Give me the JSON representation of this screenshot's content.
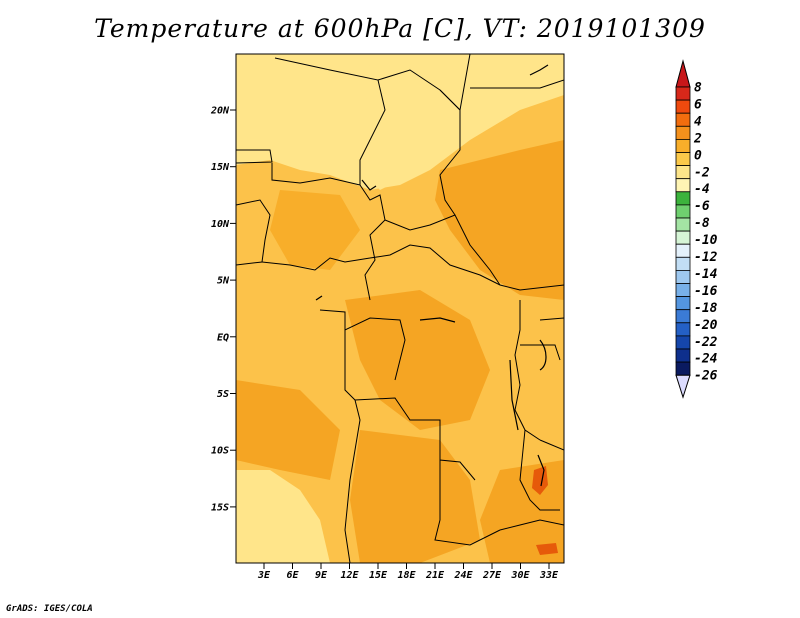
{
  "title": "Temperature at 600hPa [C], VT: 2019101309",
  "footer": "GrADS: IGES/COLA",
  "map": {
    "y_ticks": [
      "20N",
      "15N",
      "10N",
      "5N",
      "EQ",
      "5S",
      "10S",
      "15S"
    ],
    "x_ticks": [
      "3E",
      "6E",
      "9E",
      "12E",
      "15E",
      "18E",
      "21E",
      "24E",
      "27E",
      "30E",
      "33E"
    ],
    "fill_colors": {
      "pale_yellow": "#ffe58a",
      "light_orange": "#fcc24a",
      "orange": "#f5a523",
      "deep_orange": "#ee7a10",
      "hot_spot": "#e65a0a"
    }
  },
  "colorbar": {
    "labels": [
      "8",
      "6",
      "4",
      "2",
      "0",
      "-2",
      "-4",
      "-6",
      "-8",
      "-10",
      "-12",
      "-14",
      "-16",
      "-18",
      "-20",
      "-22",
      "-24",
      "-26"
    ],
    "colors": [
      "#d7281a",
      "#ef4a0e",
      "#f26d0e",
      "#f5911c",
      "#f8ae2a",
      "#fbc94a",
      "#fde58a",
      "#fff5b4",
      "#3cb33c",
      "#6fd06f",
      "#a4e4a4",
      "#d6f5d6",
      "#e4f1fb",
      "#c2def5",
      "#9ec8ef",
      "#78b0e8",
      "#5496e0",
      "#3b7bd6",
      "#2460c6",
      "#1546ab",
      "#0e2f8c",
      "#0a1a60"
    ],
    "top_arrow_color": "#c8171a",
    "bottom_arrow_color": "#dcdcff"
  }
}
